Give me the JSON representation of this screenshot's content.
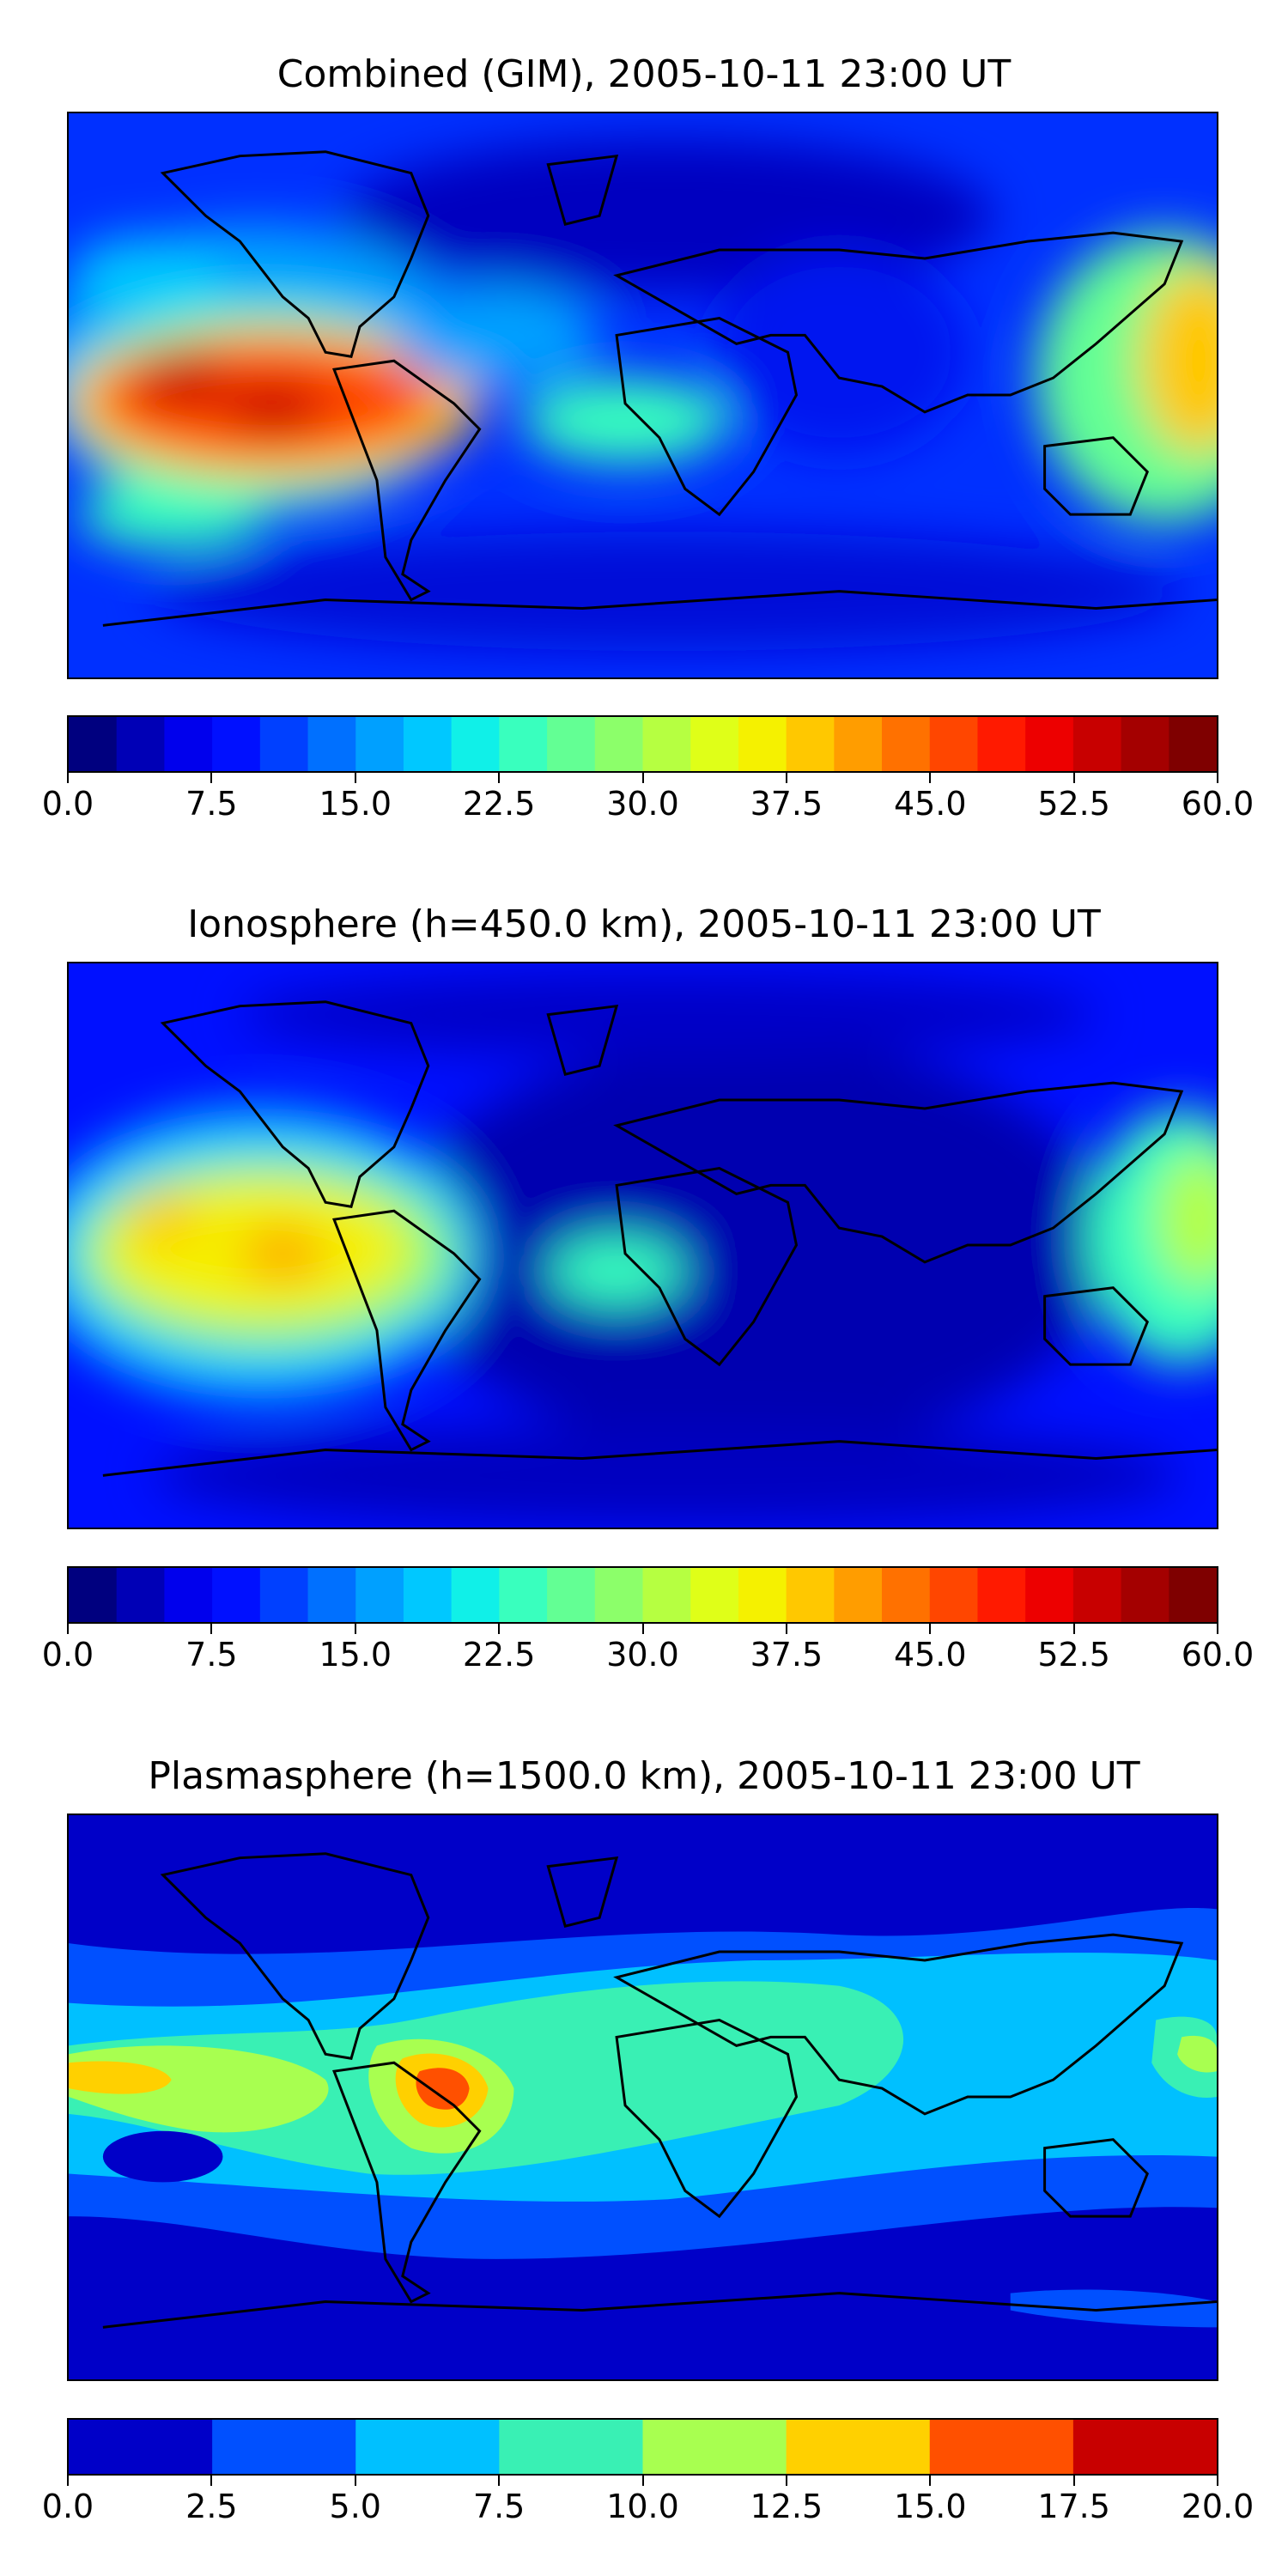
{
  "panels": [
    {
      "title": "Combined (GIM), 2005-10-11 23:00 UT",
      "variable": "combined",
      "colorbar": {
        "min": 0,
        "max": 60,
        "levels": 24,
        "tick_labels": [
          "0.0",
          "7.5",
          "15.0",
          "22.5",
          "30.0",
          "37.5",
          "45.0",
          "52.5",
          "60.0"
        ],
        "colors": [
          "#00007f",
          "#0000b6",
          "#0000ed",
          "#0010ff",
          "#0040ff",
          "#0070ff",
          "#00a0ff",
          "#00c8ff",
          "#10f0e8",
          "#39ffbe",
          "#63ff94",
          "#8cff6a",
          "#b6ff41",
          "#dfff18",
          "#f5f100",
          "#ffc800",
          "#ff9d00",
          "#ff7100",
          "#ff4600",
          "#ff1a00",
          "#ed0000",
          "#c80000",
          "#a40000",
          "#7f0000"
        ]
      }
    },
    {
      "title": "Ionosphere  (h=450.0 km), 2005-10-11 23:00 UT",
      "variable": "ionosphere",
      "colorbar": {
        "min": 0,
        "max": 60,
        "levels": 24,
        "tick_labels": [
          "0.0",
          "7.5",
          "15.0",
          "22.5",
          "30.0",
          "37.5",
          "45.0",
          "52.5",
          "60.0"
        ],
        "colors": [
          "#00007f",
          "#0000b6",
          "#0000ed",
          "#0010ff",
          "#0040ff",
          "#0070ff",
          "#00a0ff",
          "#00c8ff",
          "#10f0e8",
          "#39ffbe",
          "#63ff94",
          "#8cff6a",
          "#b6ff41",
          "#dfff18",
          "#f5f100",
          "#ffc800",
          "#ff9d00",
          "#ff7100",
          "#ff4600",
          "#ff1a00",
          "#ed0000",
          "#c80000",
          "#a40000",
          "#7f0000"
        ]
      }
    },
    {
      "title": "Plasmasphere (h=1500.0 km), 2005-10-11 23:00 UT",
      "variable": "plasmasphere",
      "colorbar": {
        "min": 0,
        "max": 20,
        "levels": 8,
        "tick_labels": [
          "0.0",
          "2.5",
          "5.0",
          "7.5",
          "10.0",
          "12.5",
          "15.0",
          "17.5",
          "20.0"
        ],
        "colors": [
          "#0000c8",
          "#0050ff",
          "#00c0ff",
          "#39f0b4",
          "#a8ff50",
          "#ffd000",
          "#ff5000",
          "#c80000"
        ]
      }
    }
  ]
}
